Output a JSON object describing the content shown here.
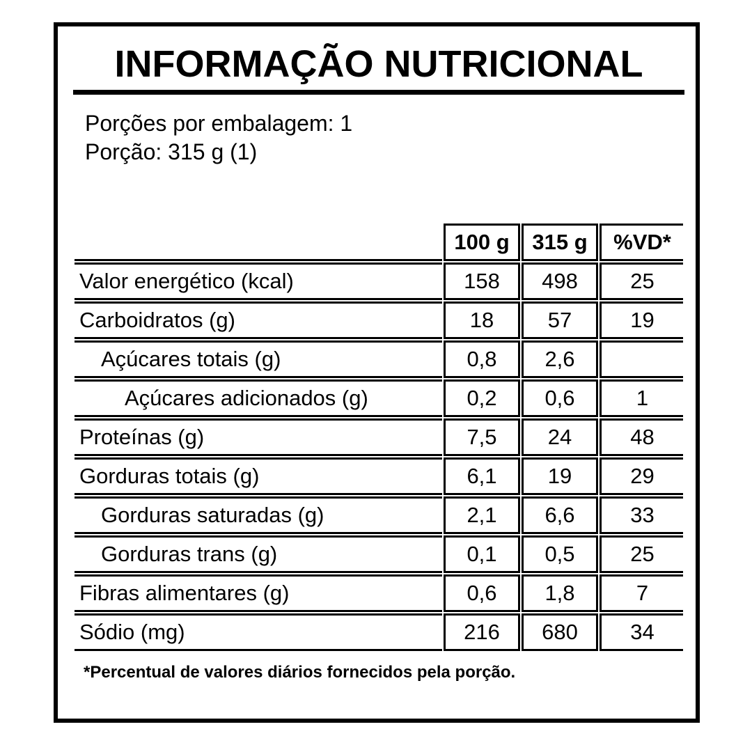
{
  "panel": {
    "title": "INFORMAÇÃO NUTRICIONAL",
    "servings_per_package": "Porções por embalagem: 1",
    "serving_size": "Porção: 315 g (1)",
    "footnote": "*Percentual de valores diários fornecidos pela porção."
  },
  "table": {
    "columns": [
      "",
      "100 g",
      "315 g",
      "%VD*"
    ],
    "rows": [
      {
        "label": "Valor energético (kcal)",
        "indent": 0,
        "per100": "158",
        "perServing": "498",
        "vd": "25"
      },
      {
        "label": "Carboidratos (g)",
        "indent": 0,
        "per100": "18",
        "perServing": "57",
        "vd": "19"
      },
      {
        "label": "Açúcares totais (g)",
        "indent": 1,
        "per100": "0,8",
        "perServing": "2,6",
        "vd": ""
      },
      {
        "label": "Açúcares adicionados (g)",
        "indent": 2,
        "per100": "0,2",
        "perServing": "0,6",
        "vd": "1"
      },
      {
        "label": "Proteínas (g)",
        "indent": 0,
        "per100": "7,5",
        "perServing": "24",
        "vd": "48"
      },
      {
        "label": "Gorduras totais (g)",
        "indent": 0,
        "per100": "6,1",
        "perServing": "19",
        "vd": "29"
      },
      {
        "label": "Gorduras saturadas (g)",
        "indent": 1,
        "per100": "2,1",
        "perServing": "6,6",
        "vd": "33"
      },
      {
        "label": "Gorduras trans (g)",
        "indent": 1,
        "per100": "0,1",
        "perServing": "0,5",
        "vd": "25"
      },
      {
        "label": "Fibras alimentares (g)",
        "indent": 0,
        "per100": "0,6",
        "perServing": "1,8",
        "vd": "7"
      },
      {
        "label": "Sódio (mg)",
        "indent": 0,
        "per100": "216",
        "perServing": "680",
        "vd": "34"
      }
    ]
  },
  "colors": {
    "ink": "#000000",
    "background": "#ffffff"
  }
}
